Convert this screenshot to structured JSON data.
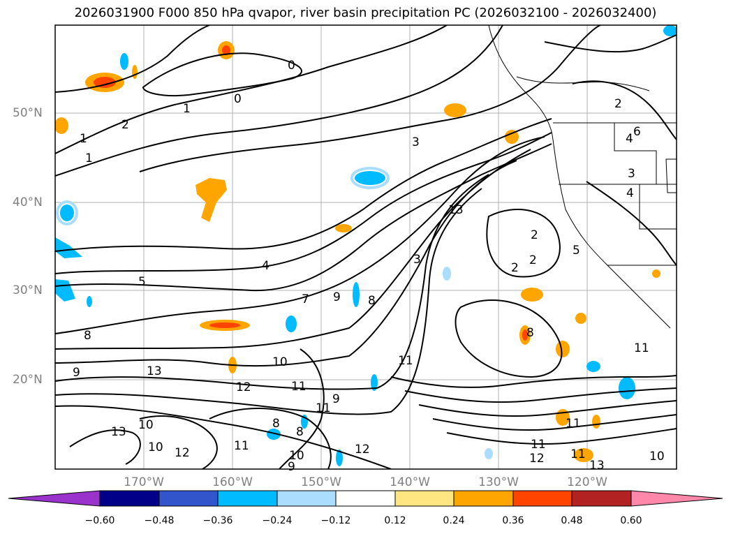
{
  "title": "2026031900 F000 850 hPa qvapor, river basin precipitation PC (2026032100 - 2026032400)",
  "lat_labels": [
    "50°N",
    "40°N",
    "30°N",
    "20°N"
  ],
  "lon_labels": [
    "170°W",
    "160°W",
    "150°W",
    "140°W",
    "130°W",
    "120°W"
  ],
  "colorbar": {
    "ticks": [
      "−0.60",
      "−0.48",
      "−0.36",
      "−0.24",
      "−0.12",
      "0.12",
      "0.24",
      "0.36",
      "0.48",
      "0.60"
    ],
    "colors": [
      "#9933cc",
      "#000088",
      "#3355cc",
      "#00bbff",
      "#aaddff",
      "#ffffff",
      "#ffe680",
      "#ffa500",
      "#ff4400",
      "#b22222",
      "#ff88aa"
    ]
  },
  "contour_labels": [
    "0",
    "0",
    "1",
    "1",
    "1",
    "2",
    "3",
    "4",
    "5",
    "7",
    "8",
    "9",
    "9",
    "8",
    "10",
    "11",
    "11",
    "12",
    "13",
    "13",
    "10",
    "11",
    "12",
    "10",
    "9",
    "8",
    "8",
    "9",
    "11",
    "12",
    "2",
    "2",
    "2",
    "3",
    "3",
    "4",
    "4",
    "5",
    "6",
    "2",
    "8",
    "11",
    "11",
    "12",
    "13",
    "11",
    "10",
    "11",
    "10",
    "13"
  ]
}
